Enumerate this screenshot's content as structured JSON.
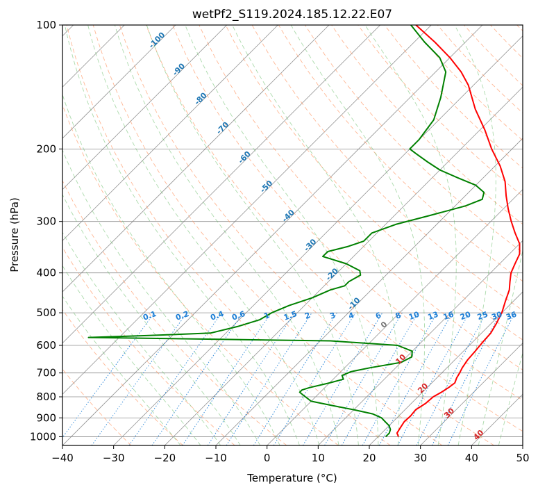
{
  "chart_data": {
    "type": "line",
    "title": "wetPf2_S119.2024.185.12.22.E07",
    "xlabel": "Temperature (°C)",
    "ylabel": "Pressure (hPa)",
    "xlim": [
      -40,
      50
    ],
    "ylim": [
      1050,
      100
    ],
    "y_scale": "log",
    "skew": "skew-T",
    "grid": true,
    "x_ticks": [
      "−40",
      "−30",
      "−20",
      "−10",
      "0",
      "10",
      "20",
      "30",
      "40",
      "50"
    ],
    "x_tick_values": [
      -40,
      -30,
      -20,
      -10,
      0,
      10,
      20,
      30,
      40,
      50
    ],
    "y_ticks": [
      "100",
      "200",
      "300",
      "400",
      "500",
      "600",
      "700",
      "800",
      "900",
      "1000"
    ],
    "y_tick_values": [
      100,
      200,
      300,
      400,
      500,
      600,
      700,
      800,
      900,
      1000
    ],
    "colors": {
      "temperature": "#ff0000",
      "dewpoint": "#008000",
      "isotherm": "#808080",
      "dry_adiabat": "#ff9966",
      "moist_adiabat": "#66bb66",
      "mixing_ratio": "#1e7fd6",
      "isotherm_label": "#1f77b4",
      "warm_label": "#d62728",
      "zero_label": "#777777"
    },
    "isotherm_labels": [
      {
        "value": -100,
        "text": "-100"
      },
      {
        "value": -90,
        "text": "-90"
      },
      {
        "value": -80,
        "text": "-80"
      },
      {
        "value": -70,
        "text": "-70"
      },
      {
        "value": -60,
        "text": "-60"
      },
      {
        "value": -50,
        "text": "-50"
      },
      {
        "value": -40,
        "text": "-40"
      },
      {
        "value": -30,
        "text": "-30"
      },
      {
        "value": -20,
        "text": "-20"
      },
      {
        "value": -10,
        "text": "-10"
      },
      {
        "value": 0,
        "text": "0"
      },
      {
        "value": 10,
        "text": "10"
      },
      {
        "value": 20,
        "text": "20"
      },
      {
        "value": 30,
        "text": "30"
      },
      {
        "value": 40,
        "text": "40"
      }
    ],
    "mixing_ratio_labels": [
      "0.1",
      "0.2",
      "0.4",
      "0.6",
      "1",
      "1.5",
      "2",
      "3",
      "4",
      "6",
      "8",
      "10",
      "13",
      "16",
      "20",
      "25",
      "30",
      "36"
    ],
    "mixing_ratio_values": [
      0.1,
      0.2,
      0.4,
      0.6,
      1,
      1.5,
      2,
      3,
      4,
      6,
      8,
      10,
      13,
      16,
      20,
      25,
      30,
      36
    ],
    "series": [
      {
        "name": "",
        "role": "temperature",
        "points": [
          [
            1000,
            24
          ],
          [
            980,
            23
          ],
          [
            950,
            22.6
          ],
          [
            920,
            22.2
          ],
          [
            890,
            22.3
          ],
          [
            860,
            22.1
          ],
          [
            830,
            22.8
          ],
          [
            800,
            23
          ],
          [
            780,
            23.7
          ],
          [
            760,
            24.2
          ],
          [
            740,
            24.5
          ],
          [
            720,
            23.9
          ],
          [
            700,
            23.5
          ],
          [
            680,
            23
          ],
          [
            650,
            22.5
          ],
          [
            620,
            22.3
          ],
          [
            590,
            22
          ],
          [
            560,
            21.8
          ],
          [
            530,
            21
          ],
          [
            500,
            20
          ],
          [
            470,
            18.5
          ],
          [
            440,
            17
          ],
          [
            420,
            15.5
          ],
          [
            400,
            14
          ],
          [
            380,
            13
          ],
          [
            360,
            12
          ],
          [
            340,
            10
          ],
          [
            320,
            7
          ],
          [
            300,
            4
          ],
          [
            280,
            1
          ],
          [
            260,
            -2
          ],
          [
            240,
            -5
          ],
          [
            220,
            -9
          ],
          [
            200,
            -14
          ],
          [
            180,
            -19
          ],
          [
            160,
            -25
          ],
          [
            140,
            -31
          ],
          [
            130,
            -35
          ],
          [
            120,
            -40
          ],
          [
            110,
            -46
          ],
          [
            100,
            -53
          ]
        ]
      },
      {
        "name": "",
        "role": "dewpoint",
        "points": [
          [
            1000,
            21.5
          ],
          [
            980,
            21.5
          ],
          [
            960,
            21
          ],
          [
            940,
            20
          ],
          [
            920,
            18.5
          ],
          [
            900,
            17
          ],
          [
            880,
            14.5
          ],
          [
            860,
            10
          ],
          [
            840,
            5
          ],
          [
            820,
            0
          ],
          [
            800,
            -2
          ],
          [
            780,
            -4
          ],
          [
            770,
            -4
          ],
          [
            760,
            -3
          ],
          [
            740,
            0
          ],
          [
            725,
            2
          ],
          [
            710,
            1
          ],
          [
            695,
            2
          ],
          [
            680,
            5
          ],
          [
            660,
            10
          ],
          [
            640,
            11
          ],
          [
            620,
            10
          ],
          [
            600,
            6
          ],
          [
            585,
            -8
          ],
          [
            580,
            -30
          ],
          [
            574,
            -56
          ],
          [
            568,
            -45
          ],
          [
            560,
            -33
          ],
          [
            540,
            -29
          ],
          [
            520,
            -26
          ],
          [
            500,
            -25
          ],
          [
            480,
            -23
          ],
          [
            460,
            -20
          ],
          [
            440,
            -18
          ],
          [
            430,
            -16
          ],
          [
            420,
            -16
          ],
          [
            405,
            -15
          ],
          [
            395,
            -16
          ],
          [
            380,
            -20
          ],
          [
            365,
            -26
          ],
          [
            355,
            -26
          ],
          [
            345,
            -23
          ],
          [
            335,
            -21
          ],
          [
            320,
            -21
          ],
          [
            305,
            -18
          ],
          [
            290,
            -13
          ],
          [
            275,
            -8
          ],
          [
            265,
            -6
          ],
          [
            255,
            -7
          ],
          [
            245,
            -10
          ],
          [
            235,
            -15
          ],
          [
            225,
            -20
          ],
          [
            215,
            -24
          ],
          [
            205,
            -28
          ],
          [
            200,
            -30
          ],
          [
            190,
            -30
          ],
          [
            170,
            -31
          ],
          [
            150,
            -34
          ],
          [
            130,
            -38
          ],
          [
            120,
            -42
          ],
          [
            110,
            -48
          ],
          [
            100,
            -54
          ]
        ]
      }
    ]
  }
}
